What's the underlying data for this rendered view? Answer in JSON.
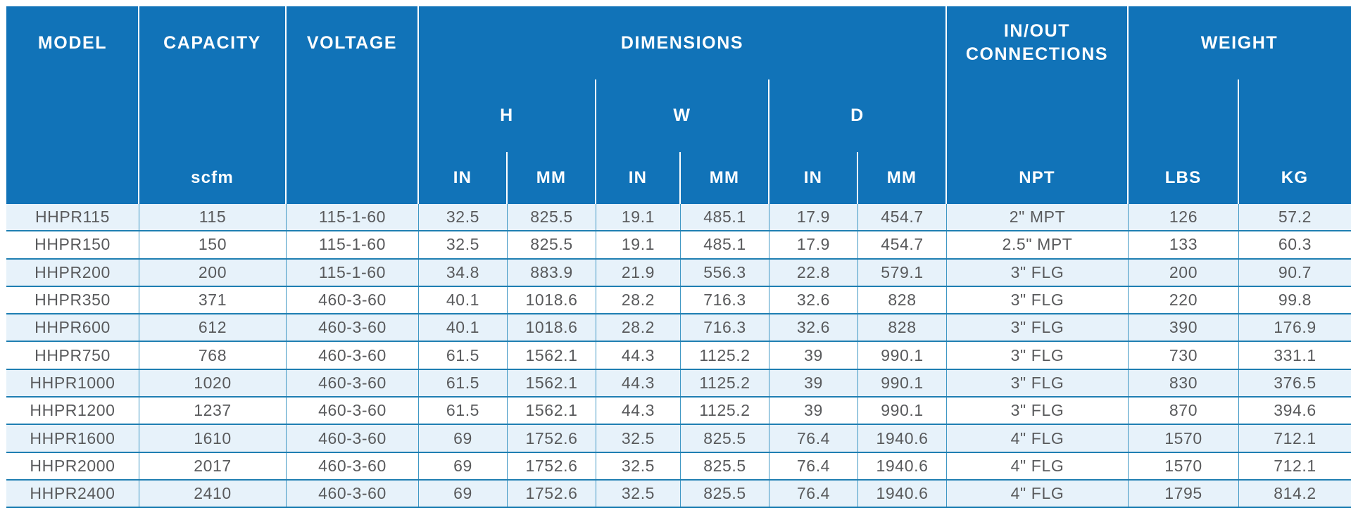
{
  "table": {
    "header": {
      "model": "MODEL",
      "capacity": "CAPACITY",
      "voltage": "VOLTAGE",
      "dimensions": "DIMENSIONS",
      "in_out_connections": "IN/OUT CONNECTIONS",
      "weight": "WEIGHT",
      "dim_h": "H",
      "dim_w": "W",
      "dim_d": "D",
      "unit_capacity": "scfm",
      "unit_in": "IN",
      "unit_mm": "MM",
      "unit_npt": "NPT",
      "unit_lbs": "LBS",
      "unit_kg": "KG"
    },
    "col_keys": [
      "model",
      "capacity-scfm",
      "voltage",
      "h-in",
      "h-mm",
      "w-in",
      "w-mm",
      "d-in",
      "d-mm",
      "npt",
      "lbs",
      "kg"
    ],
    "rows": [
      [
        "HHPR115",
        "115",
        "115-1-60",
        "32.5",
        "825.5",
        "19.1",
        "485.1",
        "17.9",
        "454.7",
        "2\" MPT",
        "126",
        "57.2"
      ],
      [
        "HHPR150",
        "150",
        "115-1-60",
        "32.5",
        "825.5",
        "19.1",
        "485.1",
        "17.9",
        "454.7",
        "2.5\" MPT",
        "133",
        "60.3"
      ],
      [
        "HHPR200",
        "200",
        "115-1-60",
        "34.8",
        "883.9",
        "21.9",
        "556.3",
        "22.8",
        "579.1",
        "3\" FLG",
        "200",
        "90.7"
      ],
      [
        "HHPR350",
        "371",
        "460-3-60",
        "40.1",
        "1018.6",
        "28.2",
        "716.3",
        "32.6",
        "828",
        "3\" FLG",
        "220",
        "99.8"
      ],
      [
        "HHPR600",
        "612",
        "460-3-60",
        "40.1",
        "1018.6",
        "28.2",
        "716.3",
        "32.6",
        "828",
        "3\" FLG",
        "390",
        "176.9"
      ],
      [
        "HHPR750",
        "768",
        "460-3-60",
        "61.5",
        "1562.1",
        "44.3",
        "1125.2",
        "39",
        "990.1",
        "3\" FLG",
        "730",
        "331.1"
      ],
      [
        "HHPR1000",
        "1020",
        "460-3-60",
        "61.5",
        "1562.1",
        "44.3",
        "1125.2",
        "39",
        "990.1",
        "3\" FLG",
        "830",
        "376.5"
      ],
      [
        "HHPR1200",
        "1237",
        "460-3-60",
        "61.5",
        "1562.1",
        "44.3",
        "1125.2",
        "39",
        "990.1",
        "3\" FLG",
        "870",
        "394.6"
      ],
      [
        "HHPR1600",
        "1610",
        "460-3-60",
        "69",
        "1752.6",
        "32.5",
        "825.5",
        "76.4",
        "1940.6",
        "4\" FLG",
        "1570",
        "712.1"
      ],
      [
        "HHPR2000",
        "2017",
        "460-3-60",
        "69",
        "1752.6",
        "32.5",
        "825.5",
        "76.4",
        "1940.6",
        "4\" FLG",
        "1570",
        "712.1"
      ],
      [
        "HHPR2400",
        "2410",
        "460-3-60",
        "69",
        "1752.6",
        "32.5",
        "825.5",
        "76.4",
        "1940.6",
        "4\" FLG",
        "1795",
        "814.2"
      ]
    ]
  },
  "colors": {
    "header_bg": "#1173b8",
    "header_text": "#ffffff",
    "row_bg": "#ffffff",
    "row_alt_bg": "#e7f2fa",
    "grid_line_h": "#1f7fb2",
    "grid_line_v": "#3f97c4",
    "text": "#595a5c"
  }
}
